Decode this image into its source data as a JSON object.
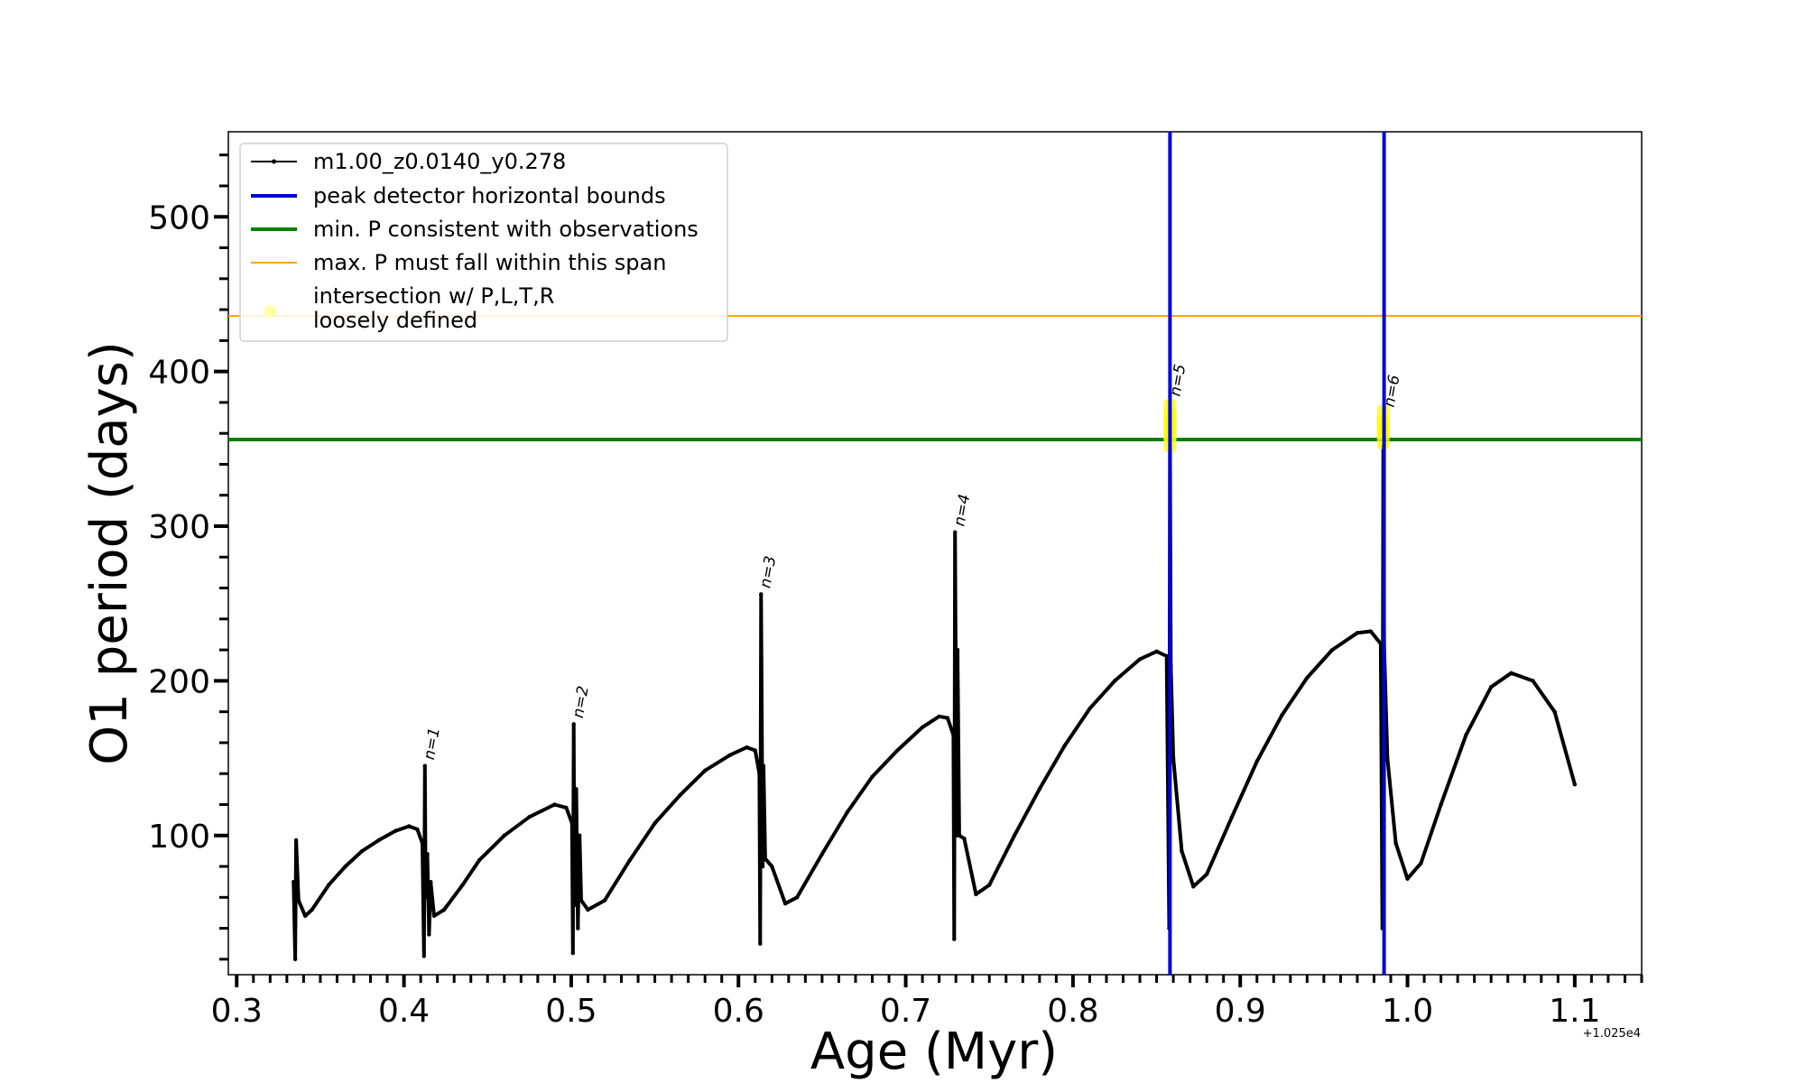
{
  "chart_data": {
    "type": "line",
    "xlabel": "Age (Myr)",
    "ylabel": "O1 period (days)",
    "x_offset_text": "+1.025e4",
    "xlim": [
      0.295,
      1.14
    ],
    "ylim": [
      10,
      555
    ],
    "x_ticks": [
      0.3,
      0.4,
      0.5,
      0.6,
      0.7,
      0.8,
      0.9,
      1.0,
      1.1
    ],
    "x_tick_labels": [
      "0.3",
      "0.4",
      "0.5",
      "0.6",
      "0.7",
      "0.8",
      "0.9",
      "1.0",
      "1.1"
    ],
    "y_ticks": [
      100,
      200,
      300,
      400,
      500
    ],
    "y_tick_labels": [
      "100",
      "200",
      "300",
      "400",
      "500"
    ],
    "legend_location": "upper-left",
    "series": [
      {
        "name": "m1.00_z0.0140_y0.278",
        "color": "#000000",
        "style": "line-with-markers",
        "points": [
          [
            0.334,
            70
          ],
          [
            0.335,
            20
          ],
          [
            0.3355,
            97
          ],
          [
            0.337,
            58
          ],
          [
            0.341,
            48
          ],
          [
            0.345,
            52
          ],
          [
            0.355,
            68
          ],
          [
            0.365,
            80
          ],
          [
            0.375,
            90
          ],
          [
            0.385,
            97
          ],
          [
            0.395,
            103
          ],
          [
            0.403,
            106
          ],
          [
            0.408,
            104
          ],
          [
            0.411,
            95
          ],
          [
            0.412,
            22
          ],
          [
            0.4125,
            145
          ],
          [
            0.413,
            60
          ],
          [
            0.414,
            88
          ],
          [
            0.415,
            36
          ],
          [
            0.416,
            70
          ],
          [
            0.418,
            48
          ],
          [
            0.424,
            52
          ],
          [
            0.435,
            68
          ],
          [
            0.445,
            84
          ],
          [
            0.46,
            100
          ],
          [
            0.475,
            112
          ],
          [
            0.49,
            120
          ],
          [
            0.497,
            118
          ],
          [
            0.5005,
            108
          ],
          [
            0.501,
            24
          ],
          [
            0.5015,
            172
          ],
          [
            0.502,
            55
          ],
          [
            0.503,
            130
          ],
          [
            0.504,
            40
          ],
          [
            0.505,
            100
          ],
          [
            0.506,
            58
          ],
          [
            0.51,
            52
          ],
          [
            0.52,
            58
          ],
          [
            0.535,
            84
          ],
          [
            0.55,
            108
          ],
          [
            0.565,
            126
          ],
          [
            0.58,
            142
          ],
          [
            0.595,
            152
          ],
          [
            0.605,
            157
          ],
          [
            0.61,
            155
          ],
          [
            0.6125,
            140
          ],
          [
            0.613,
            30
          ],
          [
            0.6135,
            256
          ],
          [
            0.6145,
            80
          ],
          [
            0.615,
            145
          ],
          [
            0.616,
            85
          ],
          [
            0.62,
            80
          ],
          [
            0.628,
            56
          ],
          [
            0.635,
            60
          ],
          [
            0.65,
            88
          ],
          [
            0.665,
            115
          ],
          [
            0.68,
            138
          ],
          [
            0.695,
            155
          ],
          [
            0.71,
            170
          ],
          [
            0.72,
            177
          ],
          [
            0.725,
            176
          ],
          [
            0.7285,
            165
          ],
          [
            0.729,
            33
          ],
          [
            0.7295,
            296
          ],
          [
            0.7305,
            100
          ],
          [
            0.731,
            220
          ],
          [
            0.732,
            100
          ],
          [
            0.735,
            98
          ],
          [
            0.742,
            62
          ],
          [
            0.75,
            68
          ],
          [
            0.765,
            100
          ],
          [
            0.78,
            130
          ],
          [
            0.795,
            158
          ],
          [
            0.81,
            182
          ],
          [
            0.825,
            200
          ],
          [
            0.84,
            214
          ],
          [
            0.85,
            219
          ],
          [
            0.856,
            216
          ],
          [
            0.8575,
            40
          ],
          [
            0.858,
            355
          ],
          [
            0.8585,
            210
          ],
          [
            0.86,
            150
          ],
          [
            0.865,
            90
          ],
          [
            0.872,
            67
          ],
          [
            0.88,
            75
          ],
          [
            0.895,
            112
          ],
          [
            0.91,
            148
          ],
          [
            0.925,
            178
          ],
          [
            0.94,
            202
          ],
          [
            0.955,
            220
          ],
          [
            0.97,
            231
          ],
          [
            0.978,
            232
          ],
          [
            0.984,
            224
          ],
          [
            0.985,
            40
          ],
          [
            0.9855,
            352
          ],
          [
            0.986,
            224
          ],
          [
            0.988,
            150
          ],
          [
            0.993,
            95
          ],
          [
            1.0,
            72
          ],
          [
            1.008,
            82
          ],
          [
            1.02,
            120
          ],
          [
            1.035,
            165
          ],
          [
            1.05,
            196
          ],
          [
            1.062,
            205
          ],
          [
            1.075,
            200
          ],
          [
            1.088,
            180
          ],
          [
            1.1,
            133
          ]
        ]
      },
      {
        "name": "peak detector horizontal bounds",
        "color": "#0000dd",
        "style": "vertical-lines",
        "x": [
          0.858,
          0.986
        ]
      },
      {
        "name": "min. P consistent with observations",
        "color": "#007f00",
        "style": "horizontal-line",
        "y": 356
      },
      {
        "name": "max. P must fall within this span",
        "color": "#ffa500",
        "style": "horizontal-line",
        "y": 436
      },
      {
        "name": "intersection w/ P,L,T,R loosely defined",
        "color": "#ffff00",
        "style": "highlight-markers",
        "points": [
          [
            0.858,
            356
          ],
          [
            0.858,
            362
          ],
          [
            0.858,
            368
          ],
          [
            0.858,
            374
          ],
          [
            0.9855,
            358
          ],
          [
            0.9855,
            364
          ],
          [
            0.9855,
            370
          ]
        ]
      }
    ],
    "annotations": [
      {
        "text": "n=1",
        "x": 0.4135,
        "y": 145
      },
      {
        "text": "n=2",
        "x": 0.5025,
        "y": 172
      },
      {
        "text": "n=3",
        "x": 0.6145,
        "y": 256
      },
      {
        "text": "n=4",
        "x": 0.7305,
        "y": 296
      },
      {
        "text": "n=5",
        "x": 0.8595,
        "y": 380
      },
      {
        "text": "n=6",
        "x": 0.9875,
        "y": 373
      }
    ],
    "legend": [
      {
        "label": "m1.00_z0.0140_y0.278",
        "color": "#000000",
        "kind": "line-marker"
      },
      {
        "label": "peak detector horizontal bounds",
        "color": "#0000dd",
        "kind": "thick-line"
      },
      {
        "label": "min. P consistent with observations",
        "color": "#007f00",
        "kind": "thick-line"
      },
      {
        "label": "max. P must fall within this span",
        "color": "#ffa500",
        "kind": "thin-line"
      },
      {
        "label": "intersection w/ P,L,T,R",
        "label2": "loosely defined",
        "color": "#ffffaa",
        "kind": "dot"
      }
    ]
  }
}
